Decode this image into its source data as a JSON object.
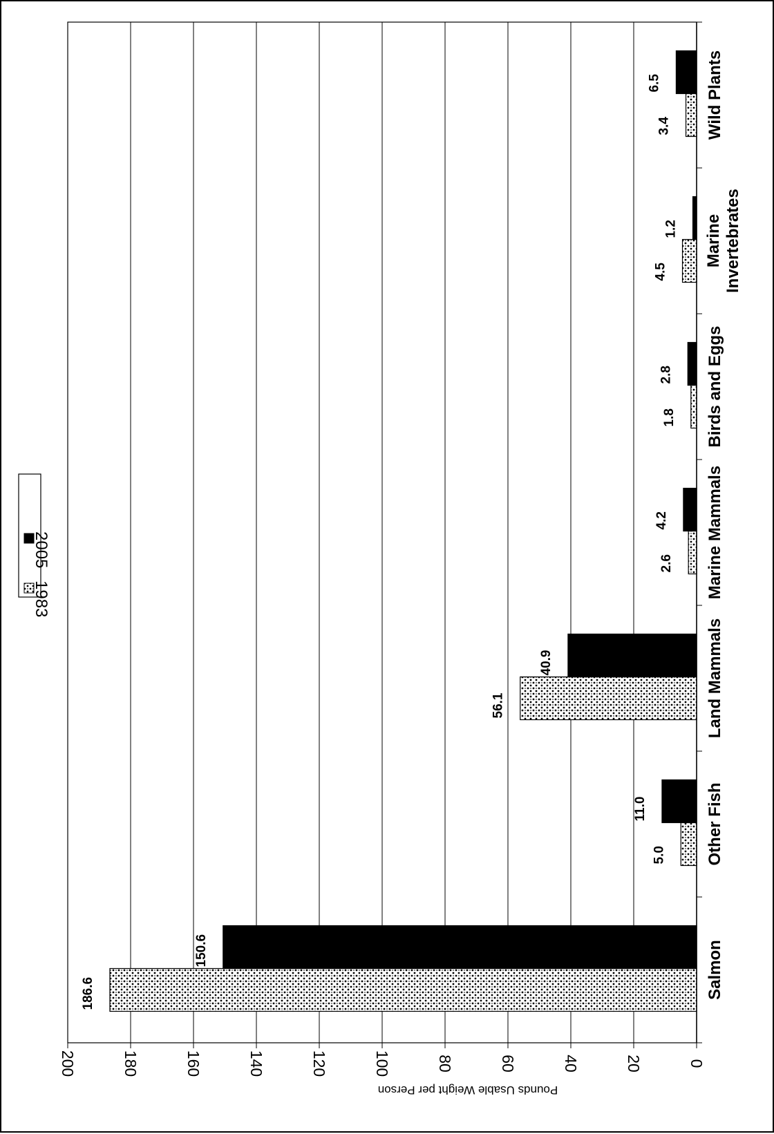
{
  "chart_data": {
    "type": "bar",
    "orientation": "rotated-90",
    "categories": [
      "Salmon",
      "Other Fish",
      "Land Mammals",
      "Marine Mammals",
      "Birds and Eggs",
      "Marine Invertebrates",
      "Wild Plants"
    ],
    "category_lines": [
      [
        "Salmon"
      ],
      [
        "Other Fish"
      ],
      [
        "Land Mammals"
      ],
      [
        "Marine Mammals"
      ],
      [
        "Birds and Eggs"
      ],
      [
        "Marine",
        "Invertebrates"
      ],
      [
        "Wild Plants"
      ]
    ],
    "series": [
      {
        "name": "1983",
        "values": [
          186.6,
          5.0,
          56.1,
          2.6,
          1.8,
          4.5,
          3.4
        ],
        "labels": [
          "186.6",
          "5.0",
          "56.1",
          "2.6",
          "1.8",
          "4.5",
          "3.4"
        ],
        "fill": "dotted",
        "color": "#000000"
      },
      {
        "name": "2005",
        "values": [
          150.6,
          11.0,
          40.9,
          4.2,
          2.8,
          1.2,
          6.5
        ],
        "labels": [
          "150.6",
          "11.0",
          "40.9",
          "4.2",
          "2.8",
          "1.2",
          "6.5"
        ],
        "fill": "solid",
        "color": "#000000"
      }
    ],
    "ylabel": "Pounds Usable Weight per Person",
    "ylim": [
      0,
      200
    ],
    "yticks": [
      0,
      20,
      40,
      60,
      80,
      100,
      120,
      140,
      160,
      180,
      200
    ],
    "grid": true,
    "legend": "top"
  }
}
